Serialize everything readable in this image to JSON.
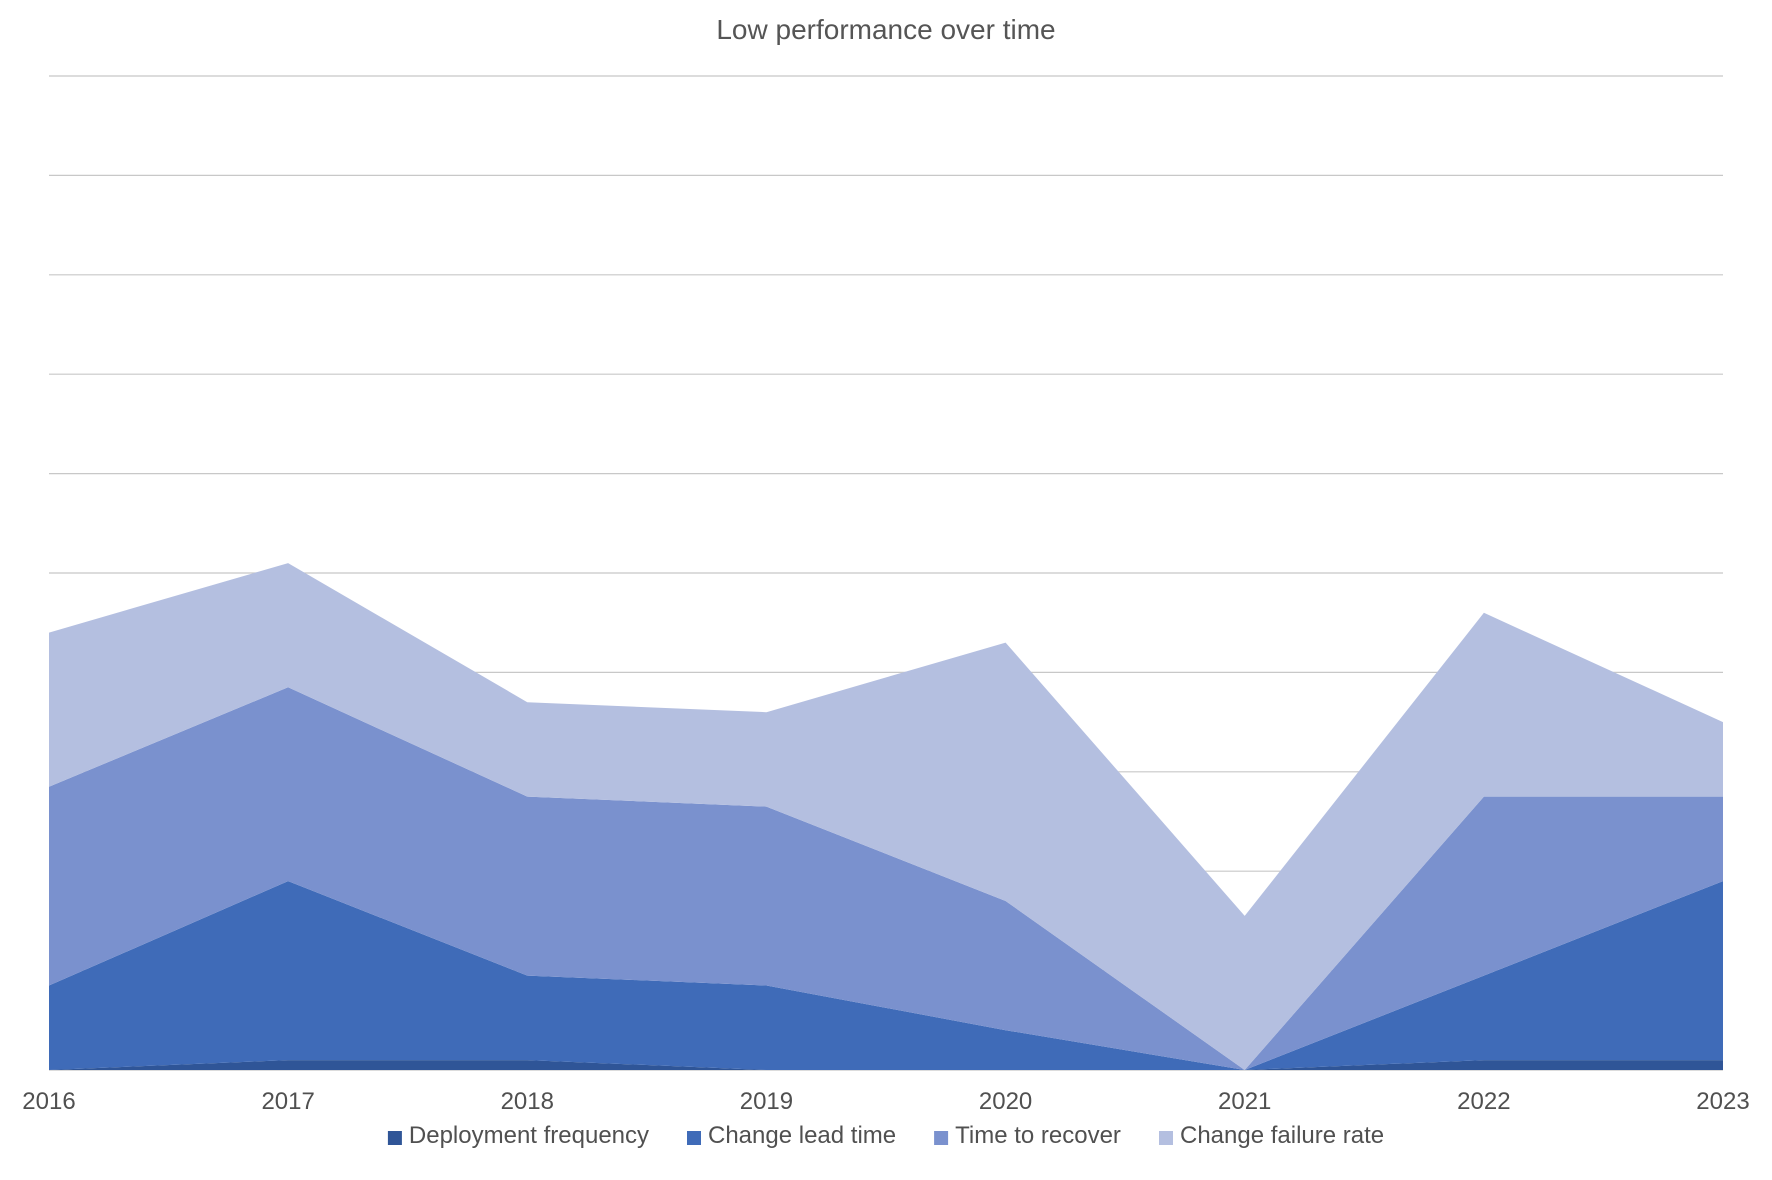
{
  "chart_data": {
    "type": "area",
    "title": "Low performance over time",
    "xlabel": "",
    "ylabel": "",
    "stacked": true,
    "grid": true,
    "legend_position": "bottom",
    "categories": [
      "2016",
      "2017",
      "2018",
      "2019",
      "2020",
      "2021",
      "2022",
      "2023"
    ],
    "ylim": [
      0,
      10
    ],
    "series": [
      {
        "name": "Deployment frequency",
        "color": "#2f5597",
        "values": [
          0,
          0.1,
          0.1,
          0,
          0,
          0,
          0.1,
          0.1
        ]
      },
      {
        "name": "Change lead time",
        "color": "#3f6bb8",
        "values": [
          0.85,
          1.8,
          0.85,
          0.85,
          0.4,
          0,
          0.85,
          1.8
        ]
      },
      {
        "name": "Time to recover",
        "color": "#7a91ce",
        "values": [
          2.0,
          1.95,
          1.8,
          1.8,
          1.3,
          0,
          1.8,
          0.85
        ]
      },
      {
        "name": "Change failure rate",
        "color": "#b4bfe0",
        "values": [
          1.55,
          1.25,
          0.95,
          0.95,
          2.6,
          1.55,
          1.85,
          0.75
        ]
      }
    ]
  }
}
